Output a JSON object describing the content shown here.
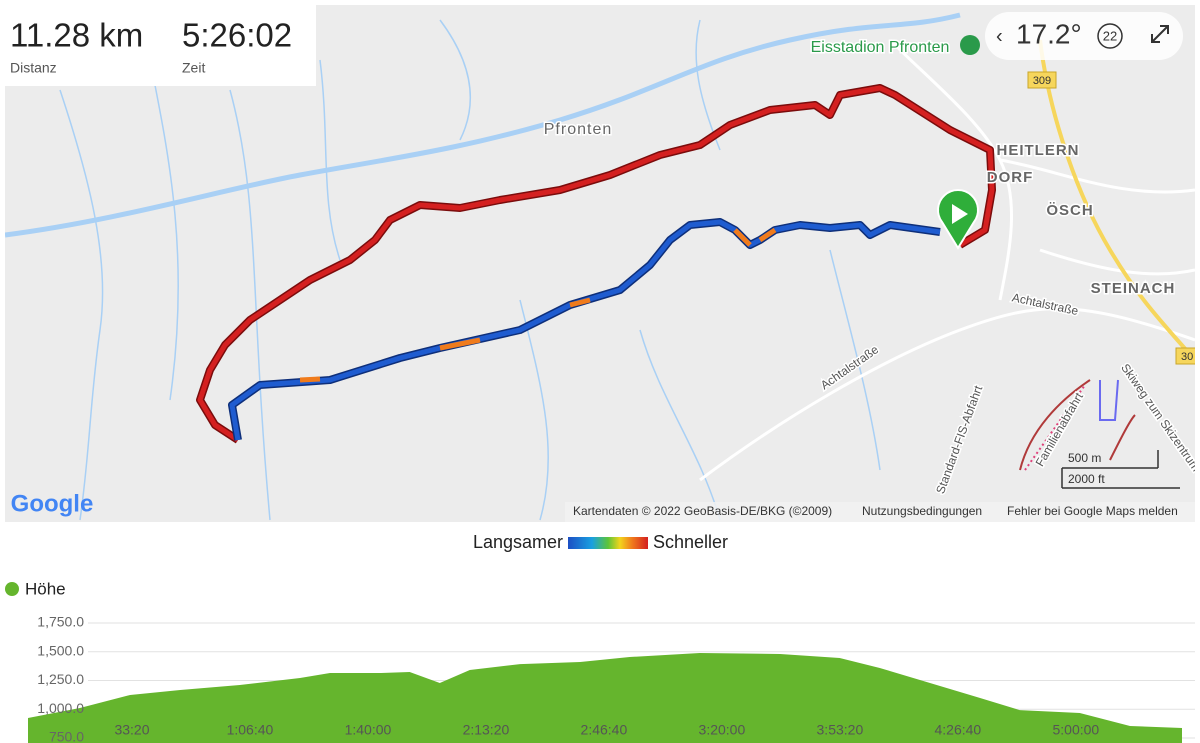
{
  "stats": {
    "distance": "11.28 km",
    "distance_label": "Distanz",
    "time": "5:26:02",
    "time_label": "Zeit"
  },
  "map": {
    "weather": "17.2°",
    "zoom": "22",
    "logo": "Google",
    "places": [
      "Eisstadion Pfronten",
      "Pfronten",
      "HEITLERN",
      "DORF",
      "ÖSCH",
      "STEINACH",
      "Achtalstraße",
      "Achtalstraße",
      "Standard-FIS-Abfahrt",
      "Familienabfahrt",
      "Skiweg zum Skizentrum"
    ],
    "road_numbers": [
      "309",
      "30"
    ],
    "scale_metric": "500 m",
    "scale_imperial": "2000 ft",
    "attribution": "Kartendaten © 2022 GeoBasis-DE/BKG (©2009)",
    "terms": "Nutzungsbedingungen",
    "report": "Fehler bei Google Maps melden"
  },
  "speed_legend": {
    "slow": "Langsamer",
    "fast": "Schneller"
  },
  "chart_data": {
    "type": "area",
    "series": [
      {
        "name": "Höhe",
        "color": "#65b52d",
        "values": [
          924,
          1011,
          1124,
          1167,
          1211,
          1272,
          1315,
          1315,
          1324,
          1228,
          1341,
          1393,
          1411,
          1454,
          1489,
          1480,
          1446,
          1359,
          1228,
          1098,
          993,
          967,
          854,
          837
        ]
      }
    ],
    "x": [
      0,
      880,
      1730,
      2580,
      3590,
      4610,
      5120,
      5970,
      6470,
      6980,
      7490,
      8340,
      9360,
      10200,
      11390,
      12750,
      13760,
      14440,
      15290,
      16140,
      16810,
      17830,
      18680,
      19562
    ],
    "xlim": [
      0,
      19562
    ],
    "xticks": [
      {
        "value": 2000,
        "label": "33:20"
      },
      {
        "value": 4000,
        "label": "1:06:40"
      },
      {
        "value": 6000,
        "label": "1:40:00"
      },
      {
        "value": 8000,
        "label": "2:13:20"
      },
      {
        "value": 10000,
        "label": "2:46:40"
      },
      {
        "value": 12000,
        "label": "3:20:00"
      },
      {
        "value": 14000,
        "label": "3:53:20"
      },
      {
        "value": 16000,
        "label": "4:26:40"
      },
      {
        "value": 18000,
        "label": "5:00:00"
      }
    ],
    "ylim": [
      750,
      1750
    ],
    "yticks": [
      {
        "value": 750,
        "label": "750.0"
      },
      {
        "value": 1000,
        "label": "1,000.0"
      },
      {
        "value": 1250,
        "label": "1,250.0"
      },
      {
        "value": 1500,
        "label": "1,500.0"
      },
      {
        "value": 1750,
        "label": "1,750.0"
      }
    ],
    "grid": true
  }
}
